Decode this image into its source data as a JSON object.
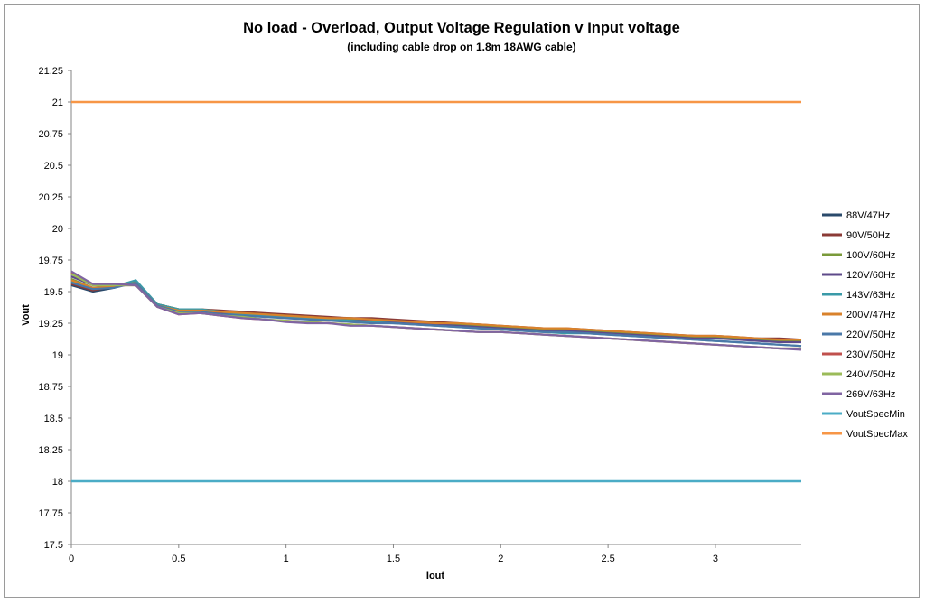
{
  "chart_data": {
    "type": "line",
    "title": "No load - Overload, Output Voltage Regulation v Input voltage",
    "subtitle": "(including cable drop on 1.8m 18AWG cable)",
    "xlabel": "Iout",
    "ylabel": "Vout",
    "xlim": [
      0,
      3.4
    ],
    "ylim": [
      17.5,
      21.25
    ],
    "xticks": [
      "0",
      "0.5",
      "1",
      "1.5",
      "2",
      "2.5",
      "3"
    ],
    "xtick_values": [
      0,
      0.5,
      1,
      1.5,
      2,
      2.5,
      3
    ],
    "yticks": [
      "17.5",
      "17.75",
      "18",
      "18.25",
      "18.5",
      "18.75",
      "19",
      "19.25",
      "19.5",
      "19.75",
      "20",
      "20.25",
      "20.5",
      "20.75",
      "21",
      "21.25"
    ],
    "ytick_values": [
      17.5,
      17.75,
      18,
      18.25,
      18.5,
      18.75,
      19,
      19.25,
      19.5,
      19.75,
      20,
      20.25,
      20.5,
      20.75,
      21,
      21.25
    ],
    "grid": "horizontal-only-none",
    "legend_position": "right",
    "x": [
      0,
      0.1,
      0.2,
      0.3,
      0.4,
      0.5,
      0.6,
      0.7,
      0.8,
      0.9,
      1.0,
      1.1,
      1.2,
      1.3,
      1.4,
      1.5,
      1.6,
      1.7,
      1.8,
      1.9,
      2.0,
      2.1,
      2.2,
      2.3,
      2.4,
      2.5,
      2.6,
      2.7,
      2.8,
      2.9,
      3.0,
      3.1,
      3.2,
      3.3,
      3.4
    ],
    "series": [
      {
        "name": "88V/47Hz",
        "color": "#2a4a6b",
        "values": [
          19.55,
          19.5,
          19.53,
          19.58,
          19.4,
          19.36,
          19.36,
          19.34,
          19.33,
          19.32,
          19.31,
          19.3,
          19.29,
          19.29,
          19.28,
          19.27,
          19.26,
          19.25,
          19.24,
          19.23,
          19.22,
          19.21,
          19.2,
          19.2,
          19.19,
          19.18,
          19.17,
          19.16,
          19.15,
          19.15,
          19.14,
          19.13,
          19.12,
          19.12,
          19.11
        ]
      },
      {
        "name": "90V/50Hz",
        "color": "#8b3a36",
        "values": [
          19.56,
          19.51,
          19.54,
          19.58,
          19.4,
          19.36,
          19.36,
          19.35,
          19.34,
          19.33,
          19.32,
          19.31,
          19.3,
          19.29,
          19.29,
          19.28,
          19.27,
          19.26,
          19.25,
          19.24,
          19.23,
          19.22,
          19.21,
          19.21,
          19.2,
          19.19,
          19.18,
          19.17,
          19.16,
          19.15,
          19.15,
          19.14,
          19.13,
          19.13,
          19.12
        ]
      },
      {
        "name": "100V/60Hz",
        "color": "#7a9a3a",
        "values": [
          19.6,
          19.53,
          19.55,
          19.58,
          19.4,
          19.36,
          19.36,
          19.34,
          19.33,
          19.32,
          19.31,
          19.3,
          19.29,
          19.28,
          19.28,
          19.27,
          19.26,
          19.25,
          19.24,
          19.23,
          19.22,
          19.21,
          19.2,
          19.2,
          19.19,
          19.18,
          19.17,
          19.16,
          19.15,
          19.14,
          19.14,
          19.13,
          19.12,
          19.11,
          19.11
        ]
      },
      {
        "name": "120V/60Hz",
        "color": "#5e4a8a",
        "values": [
          19.62,
          19.55,
          19.55,
          19.56,
          19.39,
          19.35,
          19.35,
          19.33,
          19.32,
          19.31,
          19.3,
          19.29,
          19.28,
          19.27,
          19.27,
          19.26,
          19.25,
          19.24,
          19.23,
          19.22,
          19.21,
          19.2,
          19.19,
          19.19,
          19.18,
          19.17,
          19.16,
          19.15,
          19.14,
          19.13,
          19.13,
          19.12,
          19.11,
          19.1,
          19.1
        ]
      },
      {
        "name": "143V/63Hz",
        "color": "#3a9aa8",
        "values": [
          19.58,
          19.53,
          19.54,
          19.59,
          19.4,
          19.36,
          19.36,
          19.34,
          19.32,
          19.31,
          19.3,
          19.29,
          19.28,
          19.27,
          19.26,
          19.25,
          19.24,
          19.23,
          19.22,
          19.21,
          19.2,
          19.19,
          19.18,
          19.17,
          19.17,
          19.16,
          19.15,
          19.14,
          19.13,
          19.12,
          19.11,
          19.1,
          19.09,
          19.08,
          19.07
        ]
      },
      {
        "name": "200V/47Hz",
        "color": "#d9822b",
        "values": [
          19.59,
          19.53,
          19.54,
          19.57,
          19.39,
          19.35,
          19.35,
          19.34,
          19.33,
          19.32,
          19.31,
          19.3,
          19.29,
          19.29,
          19.28,
          19.27,
          19.26,
          19.25,
          19.25,
          19.24,
          19.23,
          19.22,
          19.21,
          19.21,
          19.2,
          19.19,
          19.18,
          19.17,
          19.16,
          19.15,
          19.15,
          19.14,
          19.13,
          19.12,
          19.12
        ]
      },
      {
        "name": "220V/50Hz",
        "color": "#4a78a8",
        "values": [
          19.57,
          19.52,
          19.53,
          19.57,
          19.39,
          19.34,
          19.34,
          19.32,
          19.31,
          19.3,
          19.29,
          19.28,
          19.27,
          19.26,
          19.25,
          19.25,
          19.24,
          19.23,
          19.22,
          19.21,
          19.2,
          19.19,
          19.18,
          19.18,
          19.17,
          19.16,
          19.15,
          19.14,
          19.13,
          19.12,
          19.11,
          19.1,
          19.09,
          19.08,
          19.07
        ]
      },
      {
        "name": "230V/50Hz",
        "color": "#c0504d",
        "values": [
          19.65,
          19.56,
          19.55,
          19.55,
          19.38,
          19.32,
          19.33,
          19.31,
          19.29,
          19.28,
          19.27,
          19.26,
          19.25,
          19.24,
          19.23,
          19.22,
          19.21,
          19.2,
          19.19,
          19.18,
          19.18,
          19.17,
          19.16,
          19.15,
          19.14,
          19.13,
          19.12,
          19.11,
          19.1,
          19.09,
          19.08,
          19.07,
          19.06,
          19.05,
          19.05
        ]
      },
      {
        "name": "240V/50Hz",
        "color": "#9bbb59",
        "values": [
          19.64,
          19.55,
          19.55,
          19.55,
          19.38,
          19.33,
          19.33,
          19.31,
          19.3,
          19.28,
          19.27,
          19.26,
          19.25,
          19.24,
          19.23,
          19.22,
          19.21,
          19.2,
          19.19,
          19.18,
          19.18,
          19.17,
          19.16,
          19.15,
          19.14,
          19.13,
          19.12,
          19.11,
          19.1,
          19.09,
          19.08,
          19.07,
          19.06,
          19.05,
          19.05
        ]
      },
      {
        "name": "269V/63Hz",
        "color": "#8064a2",
        "values": [
          19.66,
          19.56,
          19.56,
          19.55,
          19.38,
          19.32,
          19.33,
          19.31,
          19.29,
          19.28,
          19.26,
          19.25,
          19.25,
          19.23,
          19.23,
          19.22,
          19.21,
          19.2,
          19.19,
          19.18,
          19.18,
          19.17,
          19.16,
          19.15,
          19.14,
          19.13,
          19.12,
          19.11,
          19.1,
          19.09,
          19.08,
          19.07,
          19.06,
          19.05,
          19.04
        ]
      },
      {
        "name": "VoutSpecMin",
        "color": "#4bacc6",
        "values": [
          18,
          18,
          18,
          18,
          18,
          18,
          18,
          18,
          18,
          18,
          18,
          18,
          18,
          18,
          18,
          18,
          18,
          18,
          18,
          18,
          18,
          18,
          18,
          18,
          18,
          18,
          18,
          18,
          18,
          18,
          18,
          18,
          18,
          18,
          18
        ]
      },
      {
        "name": "VoutSpecMax",
        "color": "#f79646",
        "values": [
          21,
          21,
          21,
          21,
          21,
          21,
          21,
          21,
          21,
          21,
          21,
          21,
          21,
          21,
          21,
          21,
          21,
          21,
          21,
          21,
          21,
          21,
          21,
          21,
          21,
          21,
          21,
          21,
          21,
          21,
          21,
          21,
          21,
          21,
          21
        ]
      }
    ]
  }
}
